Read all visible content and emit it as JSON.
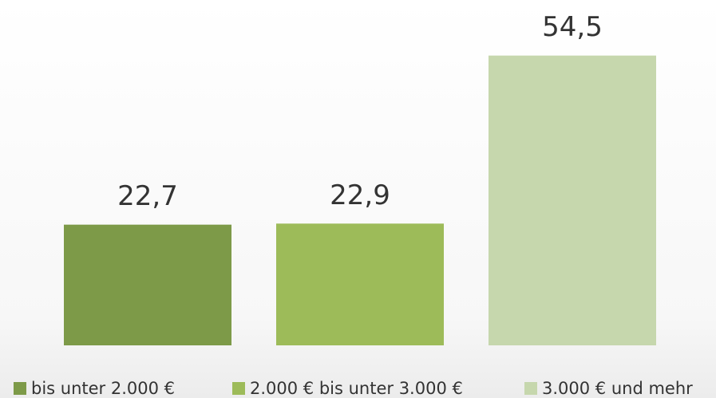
{
  "chart_data": {
    "type": "bar",
    "categories": [
      null
    ],
    "series": [
      {
        "name": "bis unter 2.000 €",
        "color": "#7d9a48",
        "values": [
          22.7
        ],
        "value_labels": [
          "22,7"
        ]
      },
      {
        "name": "2.000 € bis unter 3.000 €",
        "color": "#9dbb59",
        "values": [
          22.9
        ],
        "value_labels": [
          "22,9"
        ]
      },
      {
        "name": "3.000 € und mehr",
        "color": "#c6d7ad",
        "values": [
          54.5
        ],
        "value_labels": [
          "54,5"
        ]
      }
    ],
    "ylim": [
      0,
      60
    ],
    "legend": "bottom"
  }
}
